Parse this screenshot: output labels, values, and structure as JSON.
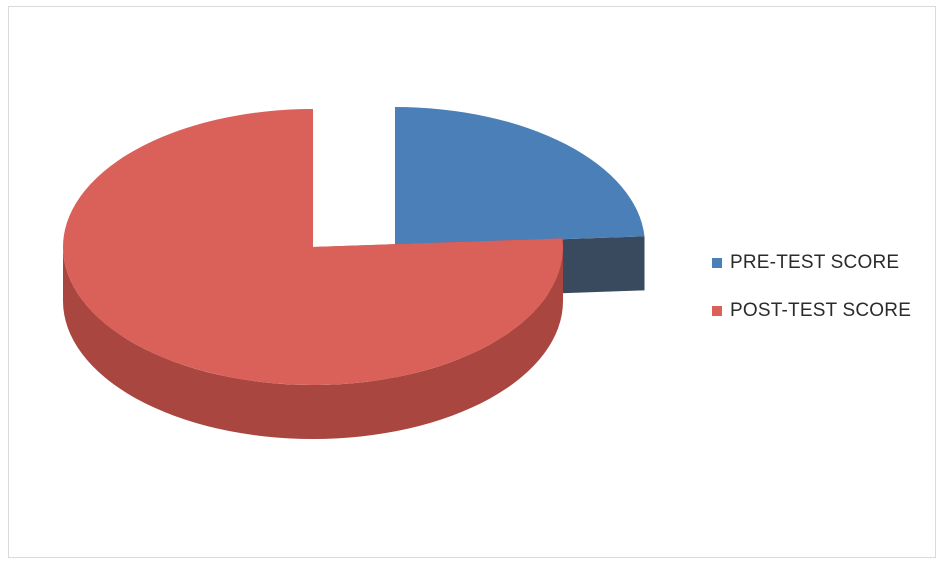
{
  "chart_data": {
    "type": "pie",
    "title": "",
    "categories": [
      "PRE-TEST SCORE",
      "POST-TEST SCORE"
    ],
    "values": [
      24,
      76
    ],
    "exploded": true,
    "three_d": true,
    "legend_position": "right",
    "colors": [
      "#4a7fb8",
      "#d9615a"
    ],
    "side_colors": [
      "#394a5e",
      "#a8463f"
    ]
  },
  "legend": {
    "items": [
      {
        "label": "PRE-TEST SCORE",
        "color": "#4a7fb8"
      },
      {
        "label": "POST-TEST SCORE",
        "color": "#d9615a"
      }
    ]
  }
}
